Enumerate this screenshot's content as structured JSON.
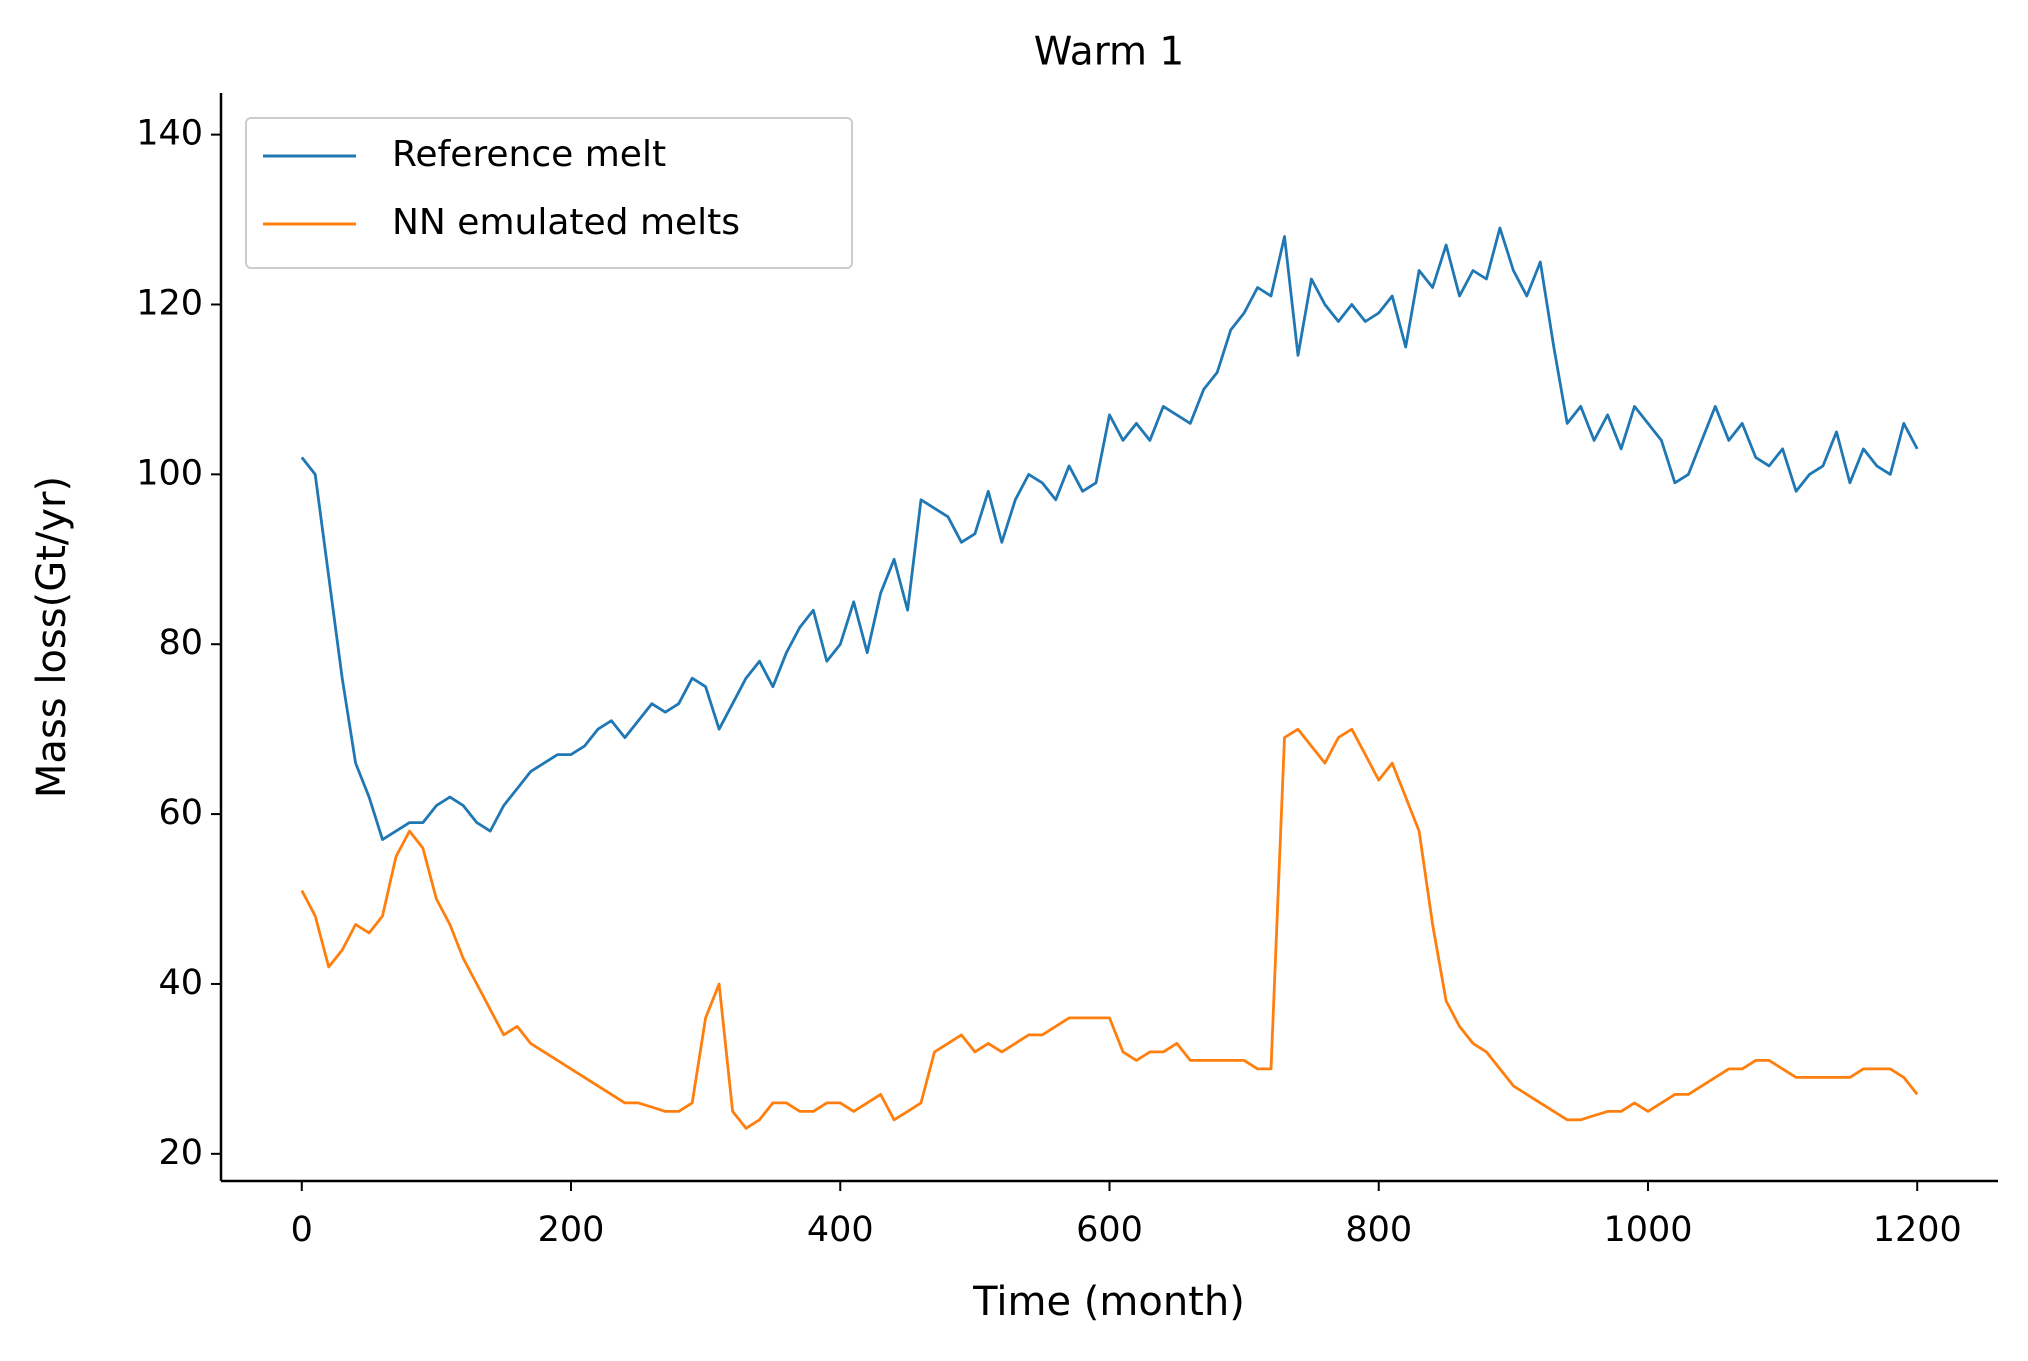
{
  "chart_data": {
    "type": "line",
    "title": "Warm 1",
    "x_label": "Time (month)",
    "y_label": "Mass loss(Gt/yr)",
    "x": [
      0,
      10,
      20,
      30,
      40,
      50,
      60,
      70,
      80,
      90,
      100,
      110,
      120,
      130,
      140,
      150,
      160,
      170,
      180,
      190,
      200,
      210,
      220,
      230,
      240,
      250,
      260,
      270,
      280,
      290,
      300,
      310,
      320,
      330,
      340,
      350,
      360,
      370,
      380,
      390,
      400,
      410,
      420,
      430,
      440,
      450,
      460,
      470,
      480,
      490,
      500,
      510,
      520,
      530,
      540,
      550,
      560,
      570,
      580,
      590,
      600,
      610,
      620,
      630,
      640,
      650,
      660,
      670,
      680,
      690,
      700,
      710,
      720,
      730,
      740,
      750,
      760,
      770,
      780,
      790,
      800,
      810,
      820,
      830,
      840,
      850,
      860,
      870,
      880,
      890,
      900,
      910,
      920,
      930,
      940,
      950,
      960,
      970,
      980,
      990,
      1000,
      1010,
      1020,
      1030,
      1040,
      1050,
      1060,
      1070,
      1080,
      1090,
      1100,
      1110,
      1120,
      1130,
      1140,
      1150,
      1160,
      1170,
      1180,
      1190,
      1200
    ],
    "series": [
      {
        "name": "Reference melt",
        "color": "#1f77b4",
        "values": [
          102,
          100,
          88,
          76,
          66,
          62,
          57,
          58,
          59,
          59,
          61,
          62,
          61,
          59,
          58,
          61,
          63,
          65,
          66,
          67,
          67,
          68,
          70,
          71,
          69,
          71,
          73,
          72,
          73,
          76,
          75,
          70,
          73,
          76,
          78,
          75,
          79,
          82,
          84,
          78,
          80,
          85,
          79,
          86,
          90,
          84,
          97,
          96,
          95,
          92,
          93,
          98,
          92,
          97,
          100,
          99,
          97,
          101,
          98,
          99,
          107,
          104,
          106,
          104,
          108,
          107,
          106,
          110,
          112,
          117,
          119,
          122,
          121,
          128,
          114,
          123,
          120,
          118,
          120,
          118,
          119,
          121,
          115,
          124,
          122,
          127,
          121,
          124,
          123,
          129,
          124,
          121,
          125,
          115,
          106,
          108,
          104,
          107,
          103,
          108,
          106,
          104,
          99,
          100,
          104,
          108,
          104,
          106,
          102,
          101,
          103,
          98,
          100,
          101,
          105,
          99,
          103,
          101,
          100,
          106,
          103
        ]
      },
      {
        "name": "NN emulated melts",
        "color": "#ff7f0e",
        "values": [
          51,
          48,
          42,
          44,
          47,
          46,
          48,
          55,
          58,
          56,
          50,
          47,
          43,
          40,
          37,
          34,
          35,
          33,
          32,
          31,
          30,
          29,
          28,
          27,
          26,
          26,
          25.5,
          25,
          25,
          26,
          36,
          40,
          25,
          23,
          24,
          26,
          26,
          25,
          25,
          26,
          26,
          25,
          26,
          27,
          24,
          25,
          26,
          32,
          33,
          34,
          32,
          33,
          32,
          33,
          34,
          34,
          35,
          36,
          36,
          36,
          36,
          32,
          31,
          32,
          32,
          33,
          31,
          31,
          31,
          31,
          31,
          30,
          30,
          69,
          70,
          68,
          66,
          69,
          70,
          67,
          64,
          66,
          62,
          58,
          47,
          38,
          35,
          33,
          32,
          30,
          28,
          27,
          26,
          25,
          24,
          24,
          24.5,
          25,
          25,
          26,
          25,
          26,
          27,
          27,
          28,
          29,
          30,
          30,
          31,
          31,
          30,
          29,
          29,
          29,
          29,
          29,
          30,
          30,
          30,
          29,
          27
        ]
      }
    ],
    "xlim": [
      -60,
      1260
    ],
    "ylim": [
      16.8,
      144.9
    ],
    "xticks": [
      0,
      200,
      400,
      600,
      800,
      1000,
      1200
    ],
    "yticks": [
      20,
      40,
      60,
      80,
      100,
      120,
      140
    ],
    "legend": "upper left"
  }
}
